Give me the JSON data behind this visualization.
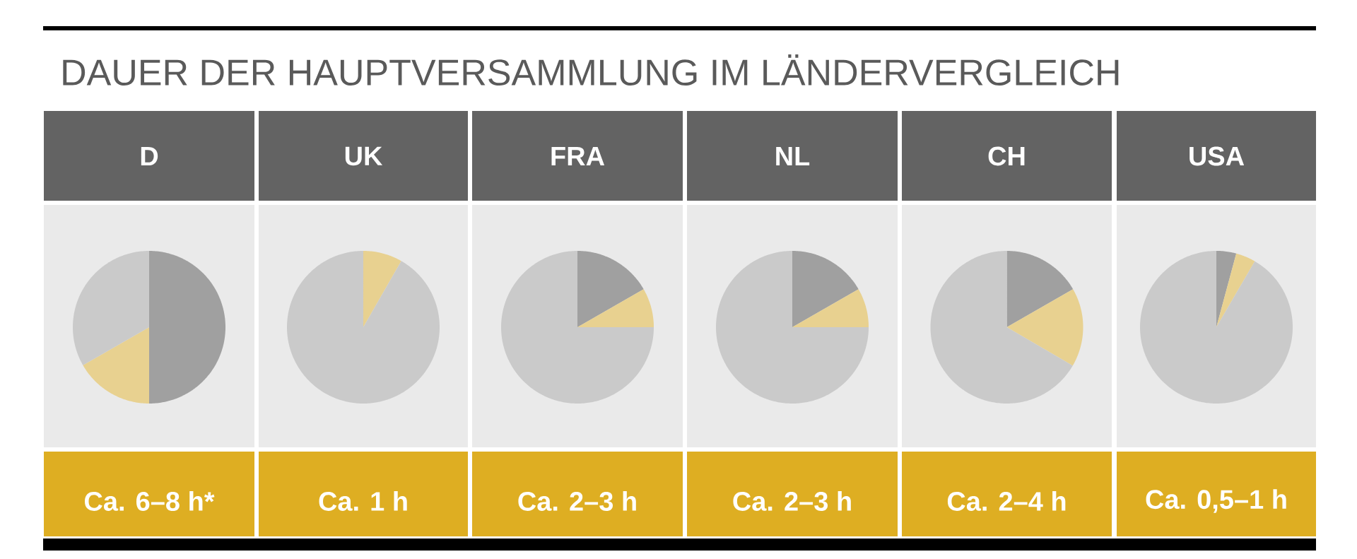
{
  "chart_data": [
    {
      "type": "other",
      "title": "DAUER DER HAUPTVERSAMMLUNG IM LÄNDERVERGLEICH"
    },
    {
      "type": "pie",
      "title": "D",
      "categories": [
        null,
        null,
        null
      ],
      "values": [
        50,
        16.7,
        33.3
      ],
      "colors": [
        "#a0a0a0",
        "#e8d190",
        "#cacaca"
      ],
      "annotations": [
        "Ca. 6–8 h*"
      ]
    },
    {
      "type": "pie",
      "title": "UK",
      "categories": [
        null,
        null
      ],
      "values": [
        8.3,
        91.7
      ],
      "colors": [
        "#e8d190",
        "#cacaca"
      ],
      "annotations": [
        "Ca. 1 h"
      ]
    },
    {
      "type": "pie",
      "title": "FRA",
      "categories": [
        null,
        null,
        null
      ],
      "values": [
        16.7,
        8.3,
        75
      ],
      "colors": [
        "#a0a0a0",
        "#e8d190",
        "#cacaca"
      ],
      "annotations": [
        "Ca. 2–3 h"
      ]
    },
    {
      "type": "pie",
      "title": "NL",
      "categories": [
        null,
        null,
        null
      ],
      "values": [
        16.7,
        8.3,
        75
      ],
      "colors": [
        "#a0a0a0",
        "#e8d190",
        "#cacaca"
      ],
      "annotations": [
        "Ca. 2–3 h"
      ]
    },
    {
      "type": "pie",
      "title": "CH",
      "categories": [
        null,
        null,
        null
      ],
      "values": [
        16.7,
        16.7,
        66.6
      ],
      "colors": [
        "#a0a0a0",
        "#e8d190",
        "#cacaca"
      ],
      "annotations": [
        "Ca. 2–4 h"
      ]
    },
    {
      "type": "pie",
      "title": "USA",
      "categories": [
        null,
        null,
        null
      ],
      "values": [
        4.2,
        4.2,
        91.6
      ],
      "colors": [
        "#a0a0a0",
        "#e8d190",
        "#cacaca"
      ],
      "annotations": [
        "Ca. 0,5–1 h"
      ]
    }
  ]
}
